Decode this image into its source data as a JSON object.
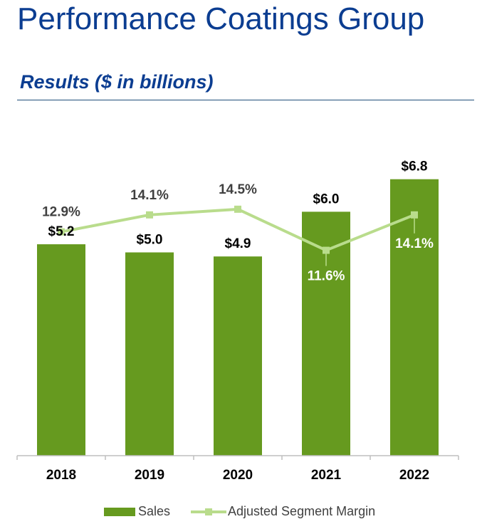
{
  "header": {
    "title": "Performance Coatings Group",
    "subtitle": "Results ($ in billions)"
  },
  "chart_data": {
    "type": "bar",
    "categories": [
      "2018",
      "2019",
      "2020",
      "2021",
      "2022"
    ],
    "series": [
      {
        "name": "Sales",
        "type": "bar",
        "values": [
          5.2,
          5.0,
          4.9,
          6.0,
          6.8
        ],
        "labels": [
          "$5.2",
          "$5.0",
          "$4.9",
          "$6.0",
          "$6.8"
        ],
        "color": "#669a1f"
      },
      {
        "name": "Adjusted Segment Margin",
        "type": "line",
        "values": [
          12.9,
          14.1,
          14.5,
          11.6,
          14.1
        ],
        "labels": [
          "12.9%",
          "14.1%",
          "14.5%",
          "11.6%",
          "14.1%"
        ],
        "color": "#b9dc8c"
      }
    ],
    "grid": false,
    "legend_position": "bottom"
  }
}
